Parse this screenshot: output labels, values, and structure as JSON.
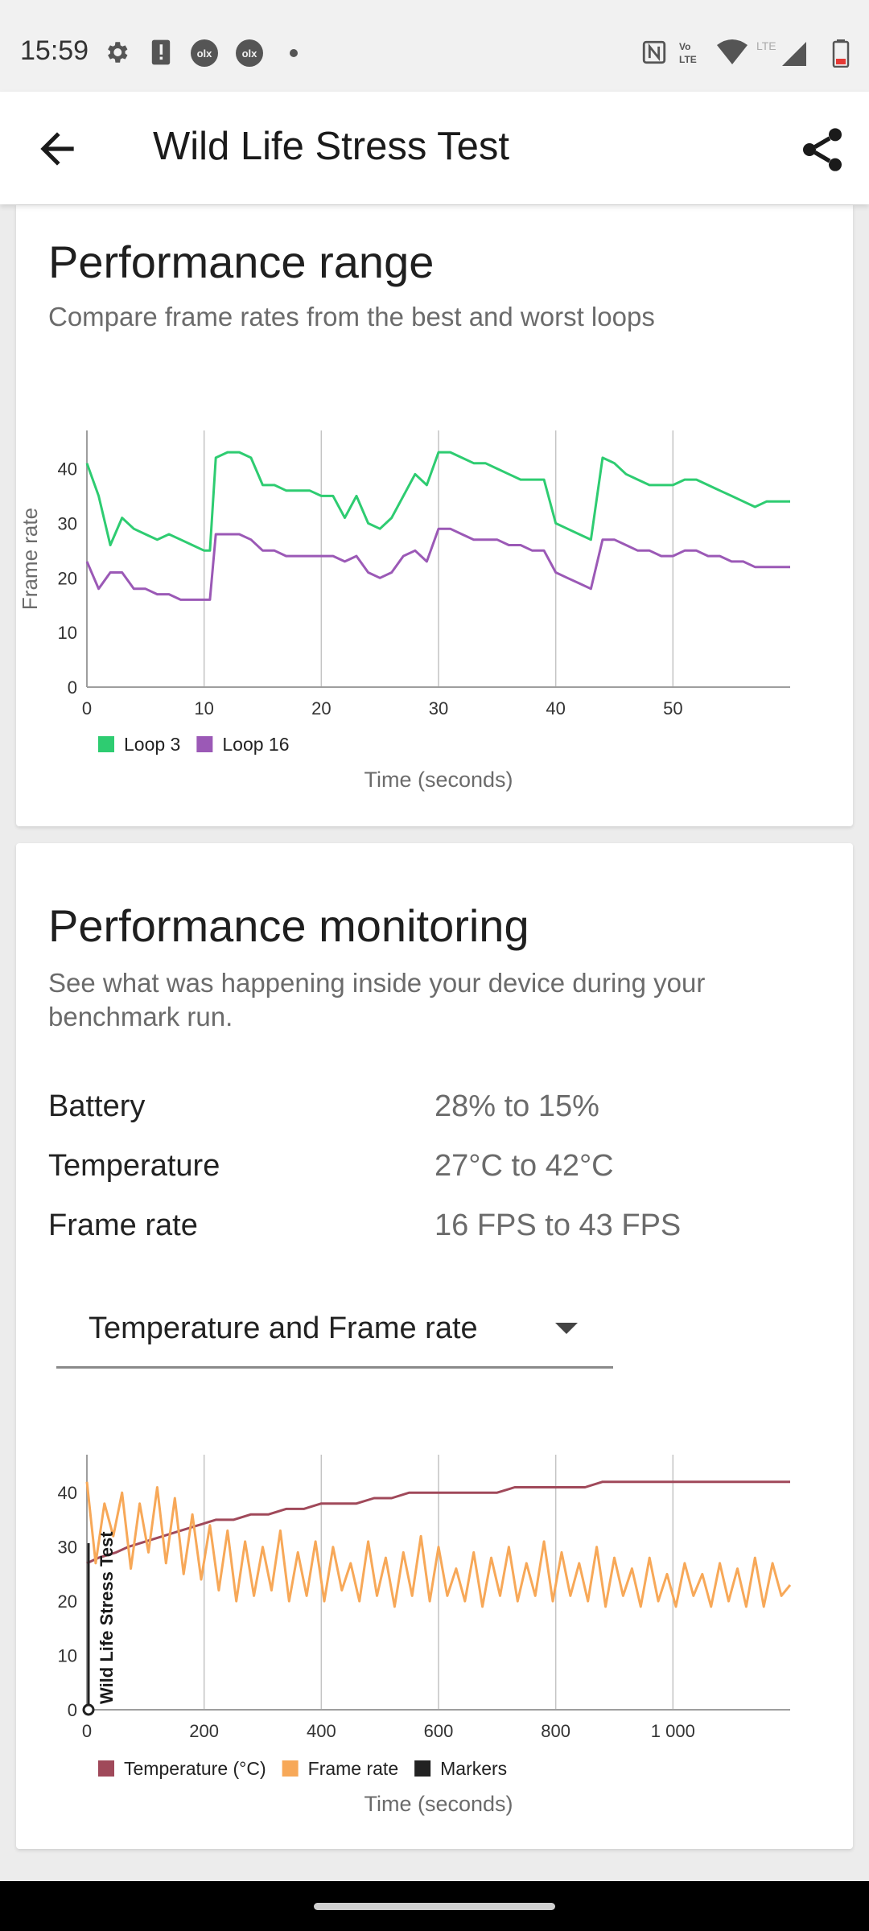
{
  "status_bar": {
    "time": "15:59"
  },
  "app_bar": {
    "title": "Wild Life Stress Test"
  },
  "range_card": {
    "title": "Performance range",
    "subtitle": "Compare frame rates from the best and worst loops"
  },
  "monitor_card": {
    "title": "Performance monitoring",
    "subtitle": "See what was happening inside your device during your benchmark run.",
    "stats": [
      {
        "label": "Battery",
        "value": "28% to 15%"
      },
      {
        "label": "Temperature",
        "value": "27°C to 42°C"
      },
      {
        "label": "Frame rate",
        "value": "16 FPS to 43 FPS"
      }
    ],
    "dropdown": {
      "selected": "Temperature and Frame rate"
    }
  },
  "chart_data": [
    {
      "type": "line",
      "title": "",
      "xlabel": "Time (seconds)",
      "ylabel": "Frame rate",
      "xlim": [
        0,
        60
      ],
      "ylim": [
        0,
        47
      ],
      "x_ticks": [
        "0",
        "10",
        "20",
        "30",
        "40",
        "50"
      ],
      "y_ticks": [
        "0",
        "10",
        "20",
        "30",
        "40"
      ],
      "grid": "vertical",
      "legend": "bottom-left",
      "series": [
        {
          "name": "Loop 3",
          "color": "#2ecc71",
          "x": [
            0,
            1,
            2,
            3,
            4,
            5,
            6,
            7,
            8,
            9,
            10,
            10.5,
            11,
            12,
            13,
            14,
            15,
            16,
            17,
            18,
            19,
            20,
            21,
            22,
            23,
            24,
            25,
            26,
            27,
            28,
            29,
            30,
            31,
            32,
            33,
            34,
            35,
            36,
            37,
            38,
            39,
            40,
            41,
            42,
            43,
            44,
            45,
            46,
            47,
            48,
            49,
            50,
            51,
            52,
            53,
            54,
            55,
            56,
            57,
            58,
            59,
            60
          ],
          "values": [
            41,
            35,
            26,
            31,
            29,
            28,
            27,
            28,
            27,
            26,
            25,
            25,
            42,
            43,
            43,
            42,
            37,
            37,
            36,
            36,
            36,
            35,
            35,
            31,
            35,
            30,
            29,
            31,
            35,
            39,
            37,
            43,
            43,
            42,
            41,
            41,
            40,
            39,
            38,
            38,
            38,
            30,
            29,
            28,
            27,
            42,
            41,
            39,
            38,
            37,
            37,
            37,
            38,
            38,
            37,
            36,
            35,
            34,
            33,
            34,
            34,
            34
          ]
        },
        {
          "name": "Loop 16",
          "color": "#9b59b6",
          "x": [
            0,
            1,
            2,
            3,
            4,
            5,
            6,
            7,
            8,
            9,
            10,
            10.5,
            11,
            12,
            13,
            14,
            15,
            16,
            17,
            18,
            19,
            20,
            21,
            22,
            23,
            24,
            25,
            26,
            27,
            28,
            29,
            30,
            31,
            32,
            33,
            34,
            35,
            36,
            37,
            38,
            39,
            40,
            41,
            42,
            43,
            44,
            45,
            46,
            47,
            48,
            49,
            50,
            51,
            52,
            53,
            54,
            55,
            56,
            57,
            58,
            59,
            60
          ],
          "values": [
            23,
            18,
            21,
            21,
            18,
            18,
            17,
            17,
            16,
            16,
            16,
            16,
            28,
            28,
            28,
            27,
            25,
            25,
            24,
            24,
            24,
            24,
            24,
            23,
            24,
            21,
            20,
            21,
            24,
            25,
            23,
            29,
            29,
            28,
            27,
            27,
            27,
            26,
            26,
            25,
            25,
            21,
            20,
            19,
            18,
            27,
            27,
            26,
            25,
            25,
            24,
            24,
            25,
            25,
            24,
            24,
            23,
            23,
            22,
            22,
            22,
            22
          ]
        }
      ]
    },
    {
      "type": "line",
      "title": "",
      "xlabel": "Time (seconds)",
      "ylabel": "",
      "xlim": [
        0,
        1200
      ],
      "ylim": [
        0,
        47
      ],
      "x_ticks": [
        "0",
        "200",
        "400",
        "600",
        "800",
        "1 000"
      ],
      "y_ticks": [
        "0",
        "10",
        "20",
        "30",
        "40"
      ],
      "grid": "vertical",
      "legend": "bottom-left",
      "marker_label": "Wild Life Stress Test",
      "series": [
        {
          "name": "Temperature (°C)",
          "color": "#a0495a",
          "x": [
            0,
            20,
            50,
            70,
            100,
            130,
            160,
            190,
            220,
            250,
            280,
            310,
            340,
            370,
            400,
            430,
            460,
            490,
            520,
            550,
            580,
            610,
            640,
            670,
            700,
            730,
            760,
            790,
            820,
            850,
            880,
            910,
            940,
            970,
            1000,
            1030,
            1060,
            1090,
            1120,
            1150,
            1180,
            1200
          ],
          "values": [
            27,
            28,
            29,
            30,
            31,
            32,
            33,
            34,
            35,
            35,
            36,
            36,
            37,
            37,
            38,
            38,
            38,
            39,
            39,
            40,
            40,
            40,
            40,
            40,
            40,
            41,
            41,
            41,
            41,
            41,
            42,
            42,
            42,
            42,
            42,
            42,
            42,
            42,
            42,
            42,
            42,
            42
          ]
        },
        {
          "name": "Frame rate",
          "color": "#f7a858",
          "x": [
            0,
            15,
            30,
            45,
            60,
            75,
            90,
            105,
            120,
            135,
            150,
            165,
            180,
            195,
            210,
            225,
            240,
            255,
            270,
            285,
            300,
            315,
            330,
            345,
            360,
            375,
            390,
            405,
            420,
            435,
            450,
            465,
            480,
            495,
            510,
            525,
            540,
            555,
            570,
            585,
            600,
            615,
            630,
            645,
            660,
            675,
            690,
            705,
            720,
            735,
            750,
            765,
            780,
            795,
            810,
            825,
            840,
            855,
            870,
            885,
            900,
            915,
            930,
            945,
            960,
            975,
            990,
            1005,
            1020,
            1035,
            1050,
            1065,
            1080,
            1095,
            1110,
            1125,
            1140,
            1155,
            1170,
            1185,
            1200
          ],
          "values": [
            42,
            27,
            38,
            32,
            40,
            26,
            38,
            29,
            41,
            27,
            39,
            25,
            36,
            24,
            34,
            22,
            33,
            20,
            31,
            21,
            30,
            22,
            33,
            20,
            29,
            21,
            31,
            20,
            30,
            22,
            27,
            20,
            31,
            21,
            28,
            19,
            29,
            21,
            32,
            20,
            30,
            21,
            26,
            20,
            29,
            19,
            28,
            21,
            30,
            20,
            27,
            21,
            31,
            20,
            29,
            21,
            27,
            20,
            30,
            19,
            28,
            21,
            26,
            19,
            28,
            20,
            25,
            19,
            27,
            21,
            25,
            19,
            27,
            20,
            26,
            19,
            28,
            19,
            27,
            21,
            23
          ]
        }
      ]
    }
  ]
}
